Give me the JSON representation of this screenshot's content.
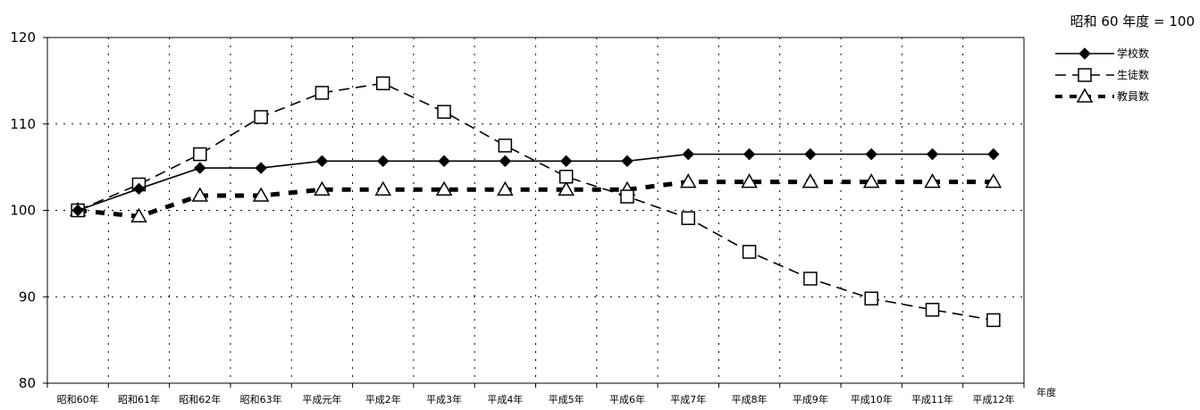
{
  "chart_data": {
    "type": "line",
    "title": "",
    "note": "昭和 60 年度 = 100",
    "xlabel": "年度",
    "ylabel": "",
    "ylim": [
      80,
      120
    ],
    "yticks": [
      80,
      90,
      100,
      110,
      120
    ],
    "grid": true,
    "legend_position": "right",
    "categories": [
      "昭和60年",
      "昭和61年",
      "昭和62年",
      "昭和63年",
      "平成元年",
      "平成2年",
      "平成3年",
      "平成4年",
      "平成5年",
      "平成6年",
      "平成7年",
      "平成8年",
      "平成9年",
      "平成10年",
      "平成11年",
      "平成12年"
    ],
    "series": [
      {
        "name": "学校数",
        "marker": "diamond",
        "line": "solid",
        "values": [
          100,
          102.5,
          104.9,
          104.9,
          105.7,
          105.7,
          105.7,
          105.7,
          105.7,
          105.7,
          106.5,
          106.5,
          106.5,
          106.5,
          106.5,
          106.5
        ]
      },
      {
        "name": "生徒数",
        "marker": "square",
        "line": "dashed",
        "values": [
          100,
          103.0,
          106.5,
          110.8,
          113.6,
          114.7,
          111.4,
          107.5,
          103.9,
          101.6,
          99.1,
          95.2,
          92.1,
          89.8,
          88.5,
          87.3
        ]
      },
      {
        "name": "教員数",
        "marker": "triangle",
        "line": "dotted-thick",
        "values": [
          100,
          99.3,
          101.7,
          101.7,
          102.4,
          102.4,
          102.4,
          102.4,
          102.4,
          102.4,
          103.3,
          103.3,
          103.3,
          103.3,
          103.3,
          103.3
        ]
      }
    ]
  }
}
